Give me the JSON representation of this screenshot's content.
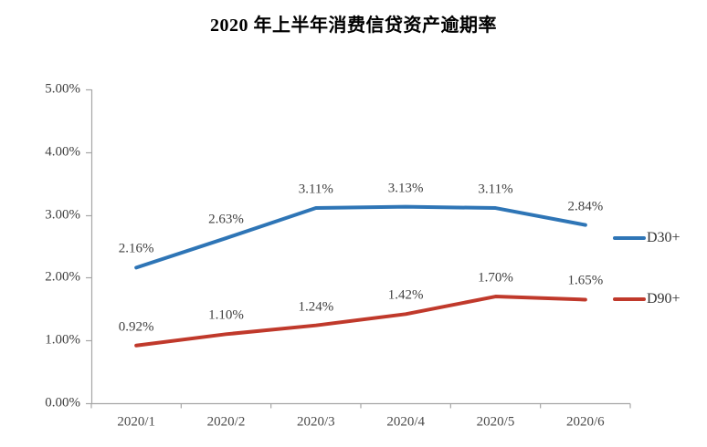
{
  "title": "2020 年上半年消费信贷资产逾期率",
  "colors": {
    "series_d30": "#2E75B6",
    "series_d90": "#C0392B",
    "axis": "#A6A6A6",
    "label_text": "#3F3F3F"
  },
  "chart_data": {
    "type": "line",
    "title": "2020 年上半年消费信贷资产逾期率",
    "categories": [
      "2020/1",
      "2020/2",
      "2020/3",
      "2020/4",
      "2020/5",
      "2020/6"
    ],
    "series": [
      {
        "name": "D30+",
        "color": "#2E75B6",
        "values": [
          2.16,
          2.63,
          3.11,
          3.13,
          3.11,
          2.84
        ],
        "point_labels": [
          "2.16%",
          "2.63%",
          "3.11%",
          "3.13%",
          "3.11%",
          "2.84%"
        ]
      },
      {
        "name": "D90+",
        "color": "#C0392B",
        "values": [
          0.92,
          1.1,
          1.24,
          1.42,
          1.7,
          1.65
        ],
        "point_labels": [
          "0.92%",
          "1.10%",
          "1.24%",
          "1.42%",
          "1.70%",
          "1.65%"
        ]
      }
    ],
    "y_axis": {
      "min": 0,
      "max": 5,
      "tick_labels": [
        "0.00%",
        "1.00%",
        "2.00%",
        "3.00%",
        "4.00%",
        "5.00%"
      ],
      "unit": "%"
    },
    "xlabel": "",
    "ylabel": "",
    "grid": false,
    "legend_position": "right"
  }
}
